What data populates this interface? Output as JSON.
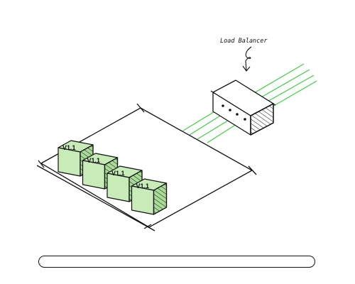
{
  "annotation": {
    "load_balancer_label": "Load Balancer"
  },
  "instances": [
    {
      "label": "V1.1"
    },
    {
      "label": "V1.1"
    },
    {
      "label": "V1.1"
    },
    {
      "label": "V1.1"
    }
  ],
  "colors": {
    "stroke": "#111111",
    "traffic": "#44cc44",
    "box_face": "#c8ecb8",
    "box_side": "#a9dc96"
  },
  "progress": {
    "value": 0
  }
}
